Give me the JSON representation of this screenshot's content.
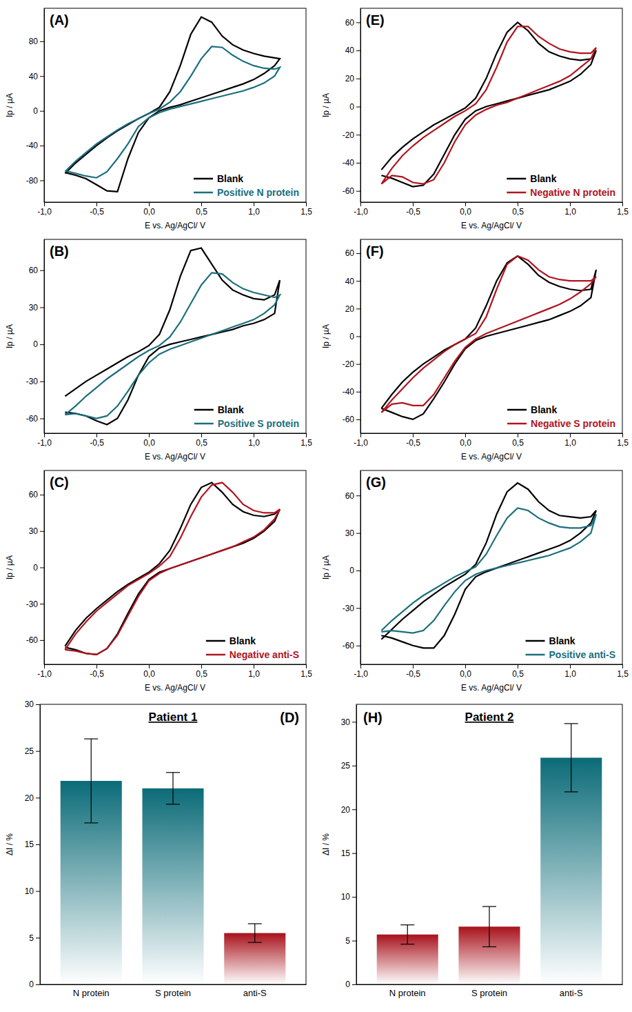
{
  "chart_data": [
    {
      "type": "line",
      "panel_label": "(A)",
      "xlabel": "E vs. Ag/AgCl/ V",
      "ylabel": "Ip / µA",
      "x": [
        -0.8,
        -0.7,
        -0.6,
        -0.5,
        -0.4,
        -0.3,
        -0.2,
        -0.1,
        0,
        0.1,
        0.2,
        0.3,
        0.4,
        0.5,
        0.6,
        0.7,
        0.8,
        0.9,
        1,
        1.1,
        1.2,
        1.25,
        1.2,
        1.1,
        1,
        0.9,
        0.8,
        0.7,
        0.6,
        0.5,
        0.4,
        0.3,
        0.2,
        0.1,
        0,
        -0.1,
        -0.2,
        -0.3,
        -0.4,
        -0.5,
        -0.6,
        -0.7,
        -0.8
      ],
      "series": [
        {
          "name": "Blank",
          "color": "#000000",
          "values": [
            -72,
            -60,
            -50,
            -40,
            -31,
            -23,
            -16,
            -9,
            -3,
            4,
            22,
            52,
            88,
            108,
            102,
            86,
            76,
            70,
            66,
            63,
            61,
            60,
            52,
            43,
            36,
            31,
            27,
            23,
            19,
            15,
            11,
            7,
            4,
            0,
            -8,
            -25,
            -55,
            -93,
            -92,
            -85,
            -78,
            -74,
            -71
          ]
        },
        {
          "name": "Positive N protein",
          "color": "#1b6e7d",
          "values": [
            -70,
            -58,
            -48,
            -38,
            -30,
            -22,
            -15,
            -9,
            -3,
            2,
            10,
            22,
            40,
            60,
            74,
            73,
            64,
            57,
            52,
            49,
            48,
            50,
            40,
            32,
            27,
            23,
            20,
            17,
            14,
            11,
            8,
            5,
            2,
            -2,
            -8,
            -18,
            -38,
            -55,
            -70,
            -77,
            -75,
            -72,
            -69
          ]
        }
      ],
      "xlim": [
        -1,
        1.5
      ],
      "ylim": [
        -105,
        118
      ],
      "xticks": [
        {
          "value": -1,
          "label": "-1,0"
        },
        {
          "value": -0.5,
          "label": "-0,5"
        },
        {
          "value": 0,
          "label": "0,0"
        },
        {
          "value": 0.5,
          "label": "0,5"
        },
        {
          "value": 1,
          "label": "1,0"
        },
        {
          "value": 1.5,
          "label": "1,5"
        }
      ],
      "yticks": [
        -80,
        -40,
        0,
        40,
        80
      ],
      "legend": "lower right",
      "grid": false
    },
    {
      "type": "line",
      "panel_label": "(E)",
      "xlabel": "E vs. Ag/AgCl/ V",
      "ylabel": "Ip / µA",
      "x": [
        -0.8,
        -0.7,
        -0.6,
        -0.5,
        -0.4,
        -0.3,
        -0.2,
        -0.1,
        0,
        0.1,
        0.2,
        0.3,
        0.4,
        0.5,
        0.6,
        0.7,
        0.8,
        0.9,
        1,
        1.1,
        1.2,
        1.25,
        1.2,
        1.1,
        1,
        0.9,
        0.8,
        0.7,
        0.6,
        0.5,
        0.4,
        0.3,
        0.2,
        0.1,
        0,
        -0.1,
        -0.2,
        -0.3,
        -0.4,
        -0.5,
        -0.6,
        -0.7,
        -0.8
      ],
      "series": [
        {
          "name": "Blank",
          "color": "#000000",
          "values": [
            -45,
            -36,
            -29,
            -23,
            -18,
            -13,
            -9,
            -5,
            -1,
            6,
            20,
            38,
            53,
            60,
            54,
            45,
            39,
            36,
            34,
            33,
            34,
            40,
            30,
            23,
            18,
            15,
            12,
            10,
            8,
            6,
            4,
            2,
            0,
            -3,
            -9,
            -20,
            -34,
            -48,
            -56,
            -57,
            -54,
            -51,
            -49
          ]
        },
        {
          "name": "Negative N protein",
          "color": "#b0141e",
          "values": [
            -55,
            -44,
            -35,
            -28,
            -22,
            -17,
            -12,
            -7,
            -3,
            2,
            12,
            28,
            46,
            57,
            57,
            50,
            45,
            41,
            39,
            38,
            38,
            42,
            34,
            28,
            22,
            18,
            15,
            12,
            9,
            6,
            3,
            1,
            -2,
            -6,
            -13,
            -25,
            -40,
            -52,
            -55,
            -54,
            -50,
            -49,
            -55
          ]
        }
      ],
      "xlim": [
        -1,
        1.5
      ],
      "ylim": [
        -68,
        70
      ],
      "xticks": [
        {
          "value": -1,
          "label": "-1,0"
        },
        {
          "value": -0.5,
          "label": "-0,5"
        },
        {
          "value": 0,
          "label": "0,0"
        },
        {
          "value": 0.5,
          "label": "0,5"
        },
        {
          "value": 1,
          "label": "1,0"
        },
        {
          "value": 1.5,
          "label": "1,5"
        }
      ],
      "yticks": [
        -60,
        -40,
        -20,
        0,
        20,
        40,
        60
      ],
      "legend": "lower right",
      "grid": false
    },
    {
      "type": "line",
      "panel_label": "(B)",
      "xlabel": "E vs. Ag/AgCl/ V",
      "ylabel": "Ip / µA",
      "x": [
        -0.8,
        -0.7,
        -0.6,
        -0.5,
        -0.4,
        -0.3,
        -0.2,
        -0.1,
        0,
        0.1,
        0.2,
        0.3,
        0.4,
        0.5,
        0.6,
        0.7,
        0.8,
        0.9,
        1,
        1.1,
        1.2,
        1.25,
        1.2,
        1.1,
        1,
        0.9,
        0.8,
        0.7,
        0.6,
        0.5,
        0.4,
        0.3,
        0.2,
        0.1,
        0,
        -0.1,
        -0.2,
        -0.3,
        -0.4,
        -0.5,
        -0.6,
        -0.7,
        -0.8
      ],
      "series": [
        {
          "name": "Blank",
          "color": "#000000",
          "values": [
            -42,
            -36,
            -30,
            -25,
            -20,
            -15,
            -10,
            -6,
            -1,
            8,
            28,
            55,
            76,
            78,
            65,
            52,
            44,
            40,
            37,
            36,
            40,
            52,
            25,
            20,
            17,
            15,
            12,
            10,
            8,
            6,
            4,
            2,
            0,
            -3,
            -10,
            -25,
            -45,
            -60,
            -65,
            -62,
            -58,
            -56,
            -55
          ]
        },
        {
          "name": "Positive S protein",
          "color": "#1b6e7d",
          "values": [
            -57,
            -50,
            -42,
            -35,
            -28,
            -22,
            -16,
            -10,
            -5,
            -1,
            6,
            18,
            33,
            48,
            58,
            57,
            50,
            45,
            42,
            40,
            38,
            40,
            32,
            25,
            20,
            17,
            14,
            11,
            8,
            5,
            2,
            -1,
            -4,
            -8,
            -15,
            -25,
            -38,
            -50,
            -58,
            -60,
            -58,
            -56,
            -57
          ]
        }
      ],
      "xlim": [
        -1,
        1.5
      ],
      "ylim": [
        -72,
        85
      ],
      "xticks": [
        {
          "value": -1,
          "label": "-1,0"
        },
        {
          "value": -0.5,
          "label": "-0,5"
        },
        {
          "value": 0,
          "label": "0,0"
        },
        {
          "value": 0.5,
          "label": "0,5"
        },
        {
          "value": 1,
          "label": "1,0"
        },
        {
          "value": 1.5,
          "label": "1,5"
        }
      ],
      "yticks": [
        -60,
        -30,
        0,
        30,
        60
      ],
      "legend": "lower right",
      "grid": false
    },
    {
      "type": "line",
      "panel_label": "(F)",
      "xlabel": "E vs. Ag/AgCl/ V",
      "ylabel": "Ip / µA",
      "x": [
        -0.8,
        -0.7,
        -0.6,
        -0.5,
        -0.4,
        -0.3,
        -0.2,
        -0.1,
        0,
        0.1,
        0.2,
        0.3,
        0.4,
        0.5,
        0.6,
        0.7,
        0.8,
        0.9,
        1,
        1.1,
        1.2,
        1.25,
        1.2,
        1.1,
        1,
        0.9,
        0.8,
        0.7,
        0.6,
        0.5,
        0.4,
        0.3,
        0.2,
        0.1,
        0,
        -0.1,
        -0.2,
        -0.3,
        -0.4,
        -0.5,
        -0.6,
        -0.7,
        -0.8
      ],
      "series": [
        {
          "name": "Blank",
          "color": "#000000",
          "values": [
            -52,
            -42,
            -33,
            -26,
            -20,
            -15,
            -10,
            -6,
            -2,
            6,
            22,
            40,
            53,
            58,
            52,
            44,
            39,
            36,
            34,
            33,
            34,
            48,
            28,
            22,
            18,
            15,
            12,
            10,
            8,
            6,
            4,
            2,
            0,
            -3,
            -9,
            -20,
            -33,
            -45,
            -56,
            -60,
            -58,
            -55,
            -52
          ]
        },
        {
          "name": "Negative S protein",
          "color": "#b0141e",
          "values": [
            -55,
            -46,
            -38,
            -30,
            -23,
            -17,
            -11,
            -6,
            -2,
            2,
            14,
            34,
            52,
            58,
            55,
            48,
            43,
            41,
            40,
            40,
            40,
            43,
            38,
            32,
            27,
            23,
            20,
            17,
            14,
            11,
            8,
            5,
            2,
            -2,
            -8,
            -18,
            -30,
            -42,
            -50,
            -50,
            -48,
            -49,
            -55
          ]
        }
      ],
      "xlim": [
        -1,
        1.5
      ],
      "ylim": [
        -70,
        70
      ],
      "xticks": [
        {
          "value": -1,
          "label": "-1,0"
        },
        {
          "value": -0.5,
          "label": "-0,5"
        },
        {
          "value": 0,
          "label": "0,0"
        },
        {
          "value": 0.5,
          "label": "0,5"
        },
        {
          "value": 1,
          "label": "1,0"
        },
        {
          "value": 1.5,
          "label": "1,5"
        }
      ],
      "yticks": [
        -60,
        -40,
        -20,
        0,
        20,
        40,
        60
      ],
      "legend": "lower right",
      "grid": false
    },
    {
      "type": "line",
      "panel_label": "(C)",
      "xlabel": "E vs. Ag/AgCl/ V",
      "ylabel": "Ip / µA",
      "x": [
        -0.8,
        -0.7,
        -0.6,
        -0.5,
        -0.4,
        -0.3,
        -0.2,
        -0.1,
        0,
        0.1,
        0.2,
        0.3,
        0.4,
        0.5,
        0.6,
        0.7,
        0.8,
        0.9,
        1,
        1.1,
        1.2,
        1.25,
        1.2,
        1.1,
        1,
        0.9,
        0.8,
        0.7,
        0.6,
        0.5,
        0.4,
        0.3,
        0.2,
        0.1,
        0,
        -0.1,
        -0.2,
        -0.3,
        -0.4,
        -0.5,
        -0.6,
        -0.7,
        -0.8
      ],
      "series": [
        {
          "name": "Blank",
          "color": "#000000",
          "values": [
            -65,
            -52,
            -42,
            -34,
            -27,
            -20,
            -14,
            -9,
            -4,
            3,
            14,
            32,
            52,
            66,
            70,
            62,
            52,
            46,
            43,
            42,
            44,
            48,
            38,
            30,
            24,
            20,
            17,
            14,
            11,
            8,
            5,
            2,
            -1,
            -4,
            -10,
            -22,
            -38,
            -55,
            -67,
            -72,
            -71,
            -68,
            -66
          ]
        },
        {
          "name": "Negative anti-S",
          "color": "#b0141e",
          "values": [
            -68,
            -55,
            -45,
            -36,
            -29,
            -22,
            -15,
            -10,
            -5,
            1,
            9,
            24,
            42,
            58,
            68,
            70,
            62,
            52,
            47,
            45,
            45,
            48,
            40,
            31,
            25,
            21,
            17,
            14,
            11,
            8,
            5,
            2,
            -1,
            -5,
            -11,
            -24,
            -40,
            -56,
            -67,
            -72,
            -71,
            -69,
            -68
          ]
        }
      ],
      "xlim": [
        -1,
        1.5
      ],
      "ylim": [
        -80,
        80
      ],
      "xticks": [
        {
          "value": -1,
          "label": "-1,0"
        },
        {
          "value": -0.5,
          "label": "-0,5"
        },
        {
          "value": 0,
          "label": "0,0"
        },
        {
          "value": 0.5,
          "label": "0,5"
        },
        {
          "value": 1,
          "label": "1,0"
        },
        {
          "value": 1.5,
          "label": "1,5"
        }
      ],
      "yticks": [
        -60,
        -30,
        0,
        30,
        60
      ],
      "legend": "lower right",
      "grid": false
    },
    {
      "type": "line",
      "panel_label": "(G)",
      "xlabel": "E vs. Ag/AgCl/ V",
      "ylabel": "Ip / µA",
      "x": [
        -0.8,
        -0.7,
        -0.6,
        -0.5,
        -0.4,
        -0.3,
        -0.2,
        -0.1,
        0,
        0.1,
        0.2,
        0.3,
        0.4,
        0.5,
        0.6,
        0.7,
        0.8,
        0.9,
        1,
        1.1,
        1.2,
        1.25,
        1.2,
        1.1,
        1,
        0.9,
        0.8,
        0.7,
        0.6,
        0.5,
        0.4,
        0.3,
        0.2,
        0.1,
        0,
        -0.1,
        -0.2,
        -0.3,
        -0.4,
        -0.5,
        -0.6,
        -0.7,
        -0.8
      ],
      "series": [
        {
          "name": "Blank",
          "color": "#000000",
          "values": [
            -55,
            -47,
            -39,
            -32,
            -25,
            -19,
            -13,
            -8,
            -3,
            5,
            22,
            45,
            63,
            70,
            65,
            55,
            48,
            44,
            43,
            42,
            43,
            48,
            38,
            30,
            24,
            20,
            17,
            14,
            11,
            8,
            5,
            2,
            -1,
            -5,
            -15,
            -35,
            -52,
            -62,
            -62,
            -60,
            -57,
            -54,
            -52
          ]
        },
        {
          "name": "Positive anti-S",
          "color": "#1b6e7d",
          "values": [
            -48,
            -40,
            -33,
            -26,
            -20,
            -15,
            -10,
            -5,
            -1,
            3,
            13,
            28,
            42,
            50,
            48,
            42,
            38,
            35,
            34,
            34,
            36,
            45,
            30,
            23,
            18,
            15,
            12,
            10,
            8,
            6,
            4,
            2,
            0,
            -3,
            -8,
            -17,
            -28,
            -40,
            -48,
            -50,
            -49,
            -48,
            -49
          ]
        }
      ],
      "xlim": [
        -1,
        1.5
      ],
      "ylim": [
        -75,
        80
      ],
      "xticks": [
        {
          "value": -1,
          "label": "-1,0"
        },
        {
          "value": -0.5,
          "label": "-0,5"
        },
        {
          "value": 0,
          "label": "0,0"
        },
        {
          "value": 0.5,
          "label": "0,5"
        },
        {
          "value": 1,
          "label": "1,0"
        },
        {
          "value": 1.5,
          "label": "1,5"
        }
      ],
      "yticks": [
        -60,
        -30,
        0,
        30,
        60
      ],
      "legend": "lower right",
      "grid": false
    },
    {
      "type": "bar",
      "panel_label": "(D)",
      "title": "Patient 1",
      "ylabel": "ΔI / %",
      "categories": [
        "N protein",
        "S protein",
        "anti-S"
      ],
      "values": [
        21.8,
        21.0,
        5.5
      ],
      "errors": [
        4.5,
        1.7,
        1.0
      ],
      "colors": [
        "#0b6b78",
        "#0b6b78",
        "#a8121c"
      ],
      "ylim": [
        0,
        30
      ],
      "yticks": [
        0,
        5,
        10,
        15,
        20,
        25,
        30
      ],
      "grid": false
    },
    {
      "type": "bar",
      "panel_label": "(H)",
      "title": "Patient 2",
      "ylabel": "ΔI / %",
      "categories": [
        "N protein",
        "S protein",
        "anti-S"
      ],
      "values": [
        5.7,
        6.6,
        25.9
      ],
      "errors": [
        1.1,
        2.3,
        3.9
      ],
      "colors": [
        "#a8121c",
        "#a8121c",
        "#0b6b78"
      ],
      "ylim": [
        0,
        32
      ],
      "yticks": [
        0,
        5,
        10,
        15,
        20,
        25,
        30
      ],
      "grid": false
    }
  ]
}
